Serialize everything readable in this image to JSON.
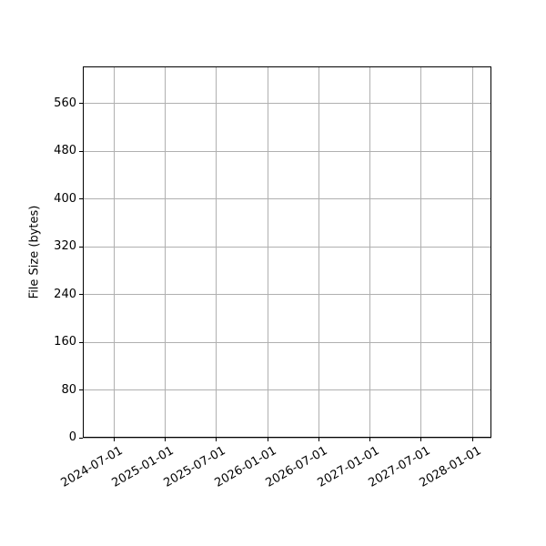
{
  "chart_data": {
    "type": "line",
    "title": "",
    "xlabel": "",
    "ylabel": "File Size (bytes)",
    "x_tick_labels": [
      "2024-07-01",
      "2025-01-01",
      "2025-07-01",
      "2026-01-01",
      "2026-07-01",
      "2027-01-01",
      "2027-07-01",
      "2028-01-01"
    ],
    "x_tick_rotation_deg": 30,
    "y_ticks": [
      0,
      80,
      160,
      240,
      320,
      400,
      480,
      560
    ],
    "ylim": [
      0,
      622
    ],
    "grid": true,
    "legend": false,
    "series": [],
    "colors": {
      "grid": "#b0b0b0",
      "axis": "#000000",
      "text": "#000000",
      "background": "#ffffff"
    }
  }
}
